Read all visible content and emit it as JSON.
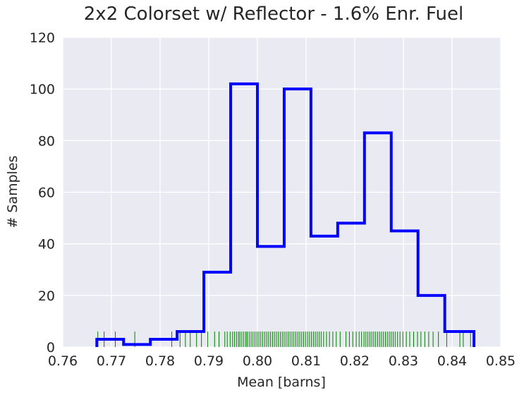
{
  "chart_data": {
    "type": "histogram",
    "title": "2x2 Colorset w/ Reflector - 1.6% Enr. Fuel",
    "xlabel": "Mean [barns]",
    "ylabel": "# Samples",
    "xlim": [
      0.76,
      0.85
    ],
    "ylim": [
      0,
      120
    ],
    "xticks": [
      "0.76",
      "0.77",
      "0.78",
      "0.79",
      "0.80",
      "0.81",
      "0.82",
      "0.83",
      "0.84",
      "0.85"
    ],
    "yticks": [
      "0",
      "20",
      "40",
      "60",
      "80",
      "100",
      "120"
    ],
    "grid": true,
    "background": "#EAEAF2",
    "histogram": {
      "color": "#0000FF",
      "bin_edges": [
        0.767,
        0.7725,
        0.778,
        0.7835,
        0.789,
        0.7945,
        0.8,
        0.8055,
        0.811,
        0.8165,
        0.822,
        0.8275,
        0.833,
        0.8385,
        0.8445
      ],
      "counts": [
        3,
        1,
        3,
        6,
        29,
        102,
        39,
        100,
        43,
        48,
        83,
        45,
        20,
        6
      ]
    },
    "rug": {
      "color": "#008000",
      "height": 6,
      "samples": [
        0.7672,
        0.7685,
        0.7708,
        0.7748,
        0.7824,
        0.7841,
        0.7852,
        0.7862,
        0.7875,
        0.7885,
        0.7898,
        0.7912,
        0.7921,
        0.7933,
        0.7938,
        0.7944,
        0.7949,
        0.7953,
        0.7957,
        0.7961,
        0.7964,
        0.7968,
        0.7972,
        0.7976,
        0.7979,
        0.7983,
        0.7987,
        0.7991,
        0.7995,
        0.7999,
        0.8003,
        0.8007,
        0.8011,
        0.8015,
        0.8019,
        0.8023,
        0.8027,
        0.8031,
        0.8035,
        0.8039,
        0.8043,
        0.8047,
        0.8051,
        0.8055,
        0.8059,
        0.8063,
        0.8067,
        0.8071,
        0.8075,
        0.8079,
        0.8083,
        0.8087,
        0.8091,
        0.8095,
        0.8099,
        0.8103,
        0.8107,
        0.8111,
        0.8115,
        0.8119,
        0.8123,
        0.8127,
        0.8131,
        0.8136,
        0.8142,
        0.8148,
        0.8155,
        0.8162,
        0.817,
        0.8182,
        0.8189,
        0.8196,
        0.8203,
        0.8209,
        0.8214,
        0.8219,
        0.8223,
        0.8227,
        0.8231,
        0.8235,
        0.8239,
        0.8243,
        0.8247,
        0.8251,
        0.8255,
        0.8259,
        0.8263,
        0.8267,
        0.8271,
        0.8275,
        0.8279,
        0.8283,
        0.8288,
        0.8293,
        0.8299,
        0.8306,
        0.8313,
        0.8321,
        0.8329,
        0.8336,
        0.8344,
        0.8352,
        0.8361,
        0.8372,
        0.8389,
        0.8416,
        0.8423,
        0.8438
      ]
    }
  }
}
